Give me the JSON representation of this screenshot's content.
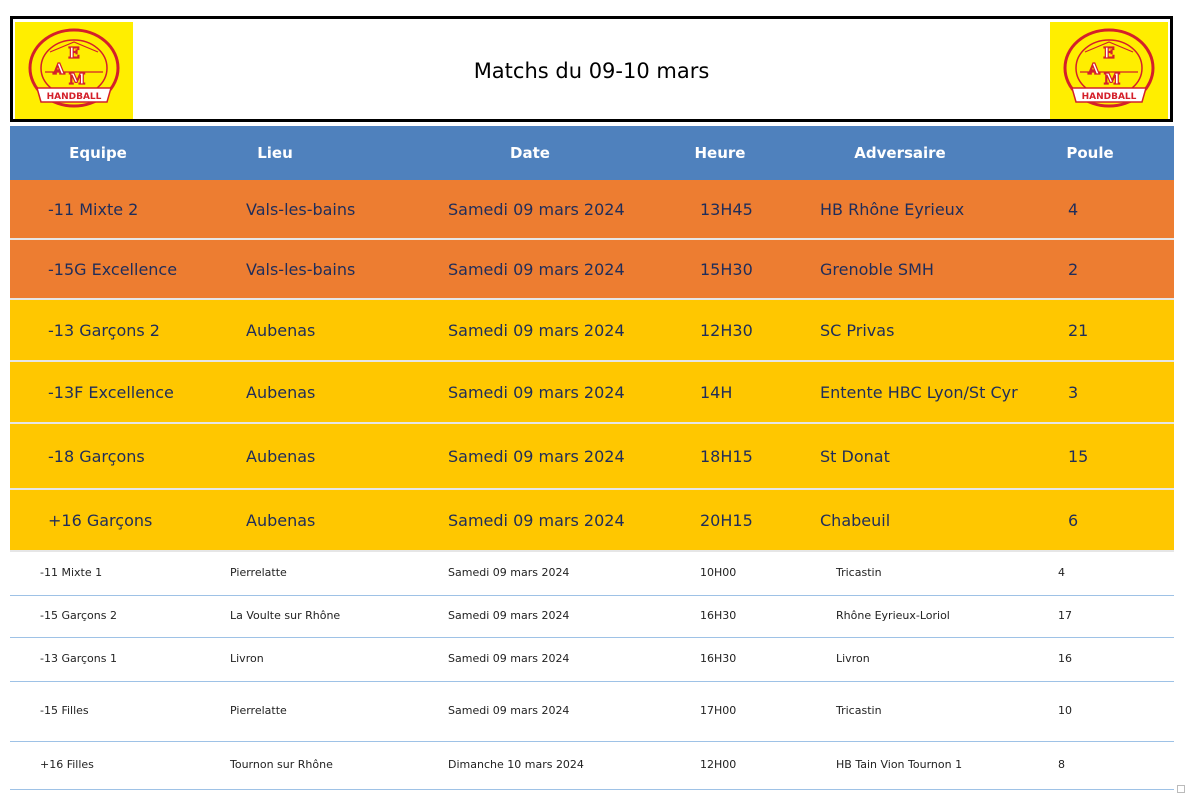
{
  "header": {
    "title": "Matchs du 09-10 mars"
  },
  "logo": {
    "letters": "EAM",
    "ribbon": "HANDBALL",
    "arc_text": "ENTENTE ST ETIENNE DE FT · VALS LES BAINS",
    "bg": "#ffee00",
    "ring": "#d4202a"
  },
  "columns": [
    "Equipe",
    "Lieu",
    "Date",
    "Heure",
    "Adversaire",
    "Poule"
  ],
  "colors": {
    "header": "#4f81bd",
    "orange": "#ed7d31",
    "yellow": "#ffc700"
  },
  "rows": [
    {
      "equipe": "-11 Mixte 2",
      "lieu": "Vals-les-bains",
      "date": "Samedi 09 mars 2024",
      "heure": "13H45",
      "adversaire": "HB Rhône Eyrieux",
      "poule": "4",
      "style": "orange"
    },
    {
      "equipe": "-15G Excellence",
      "lieu": "Vals-les-bains",
      "date": "Samedi 09 mars 2024",
      "heure": "15H30",
      "adversaire": "Grenoble SMH",
      "poule": "2",
      "style": "orange"
    },
    {
      "equipe": "-13 Garçons 2",
      "lieu": "Aubenas",
      "date": "Samedi 09 mars 2024",
      "heure": "12H30",
      "adversaire": "SC Privas",
      "poule": "21",
      "style": "yellow"
    },
    {
      "equipe": "-13F Excellence",
      "lieu": "Aubenas",
      "date": "Samedi 09 mars 2024",
      "heure": "14H",
      "adversaire": "Entente HBC Lyon/St Cyr",
      "poule": "3",
      "style": "yellow"
    },
    {
      "equipe": "-18 Garçons",
      "lieu": "Aubenas",
      "date": "Samedi 09 mars 2024",
      "heure": "18H15",
      "adversaire": "St Donat",
      "poule": "15",
      "style": "yellow"
    },
    {
      "equipe": "+16 Garçons",
      "lieu": "Aubenas",
      "date": "Samedi 09 mars 2024",
      "heure": "20H15",
      "adversaire": "Chabeuil",
      "poule": "6",
      "style": "yellow"
    },
    {
      "equipe": "-11 Mixte 1",
      "lieu": "Pierrelatte",
      "date": "Samedi 09 mars 2024",
      "heure": "10H00",
      "adversaire": "Tricastin",
      "poule": "4",
      "style": "white"
    },
    {
      "equipe": "-15 Garçons 2",
      "lieu": "La Voulte sur Rhône",
      "date": "Samedi 09 mars 2024",
      "heure": "16H30",
      "adversaire": "Rhône Eyrieux-Loriol",
      "poule": "17",
      "style": "white"
    },
    {
      "equipe": "-13 Garçons 1",
      "lieu": "Livron",
      "date": "Samedi 09 mars 2024",
      "heure": "16H30",
      "adversaire": "Livron",
      "poule": "16",
      "style": "white"
    },
    {
      "equipe": "-15 Filles",
      "lieu": "Pierrelatte",
      "date": "Samedi 09 mars 2024",
      "heure": "17H00",
      "adversaire": "Tricastin",
      "poule": "10",
      "style": "white"
    },
    {
      "equipe": "+16 Filles",
      "lieu": "Tournon sur Rhône",
      "date": "Dimanche 10 mars 2024",
      "heure": "12H00",
      "adversaire": "HB Tain Vion Tournon 1",
      "poule": "8",
      "style": "white"
    }
  ]
}
